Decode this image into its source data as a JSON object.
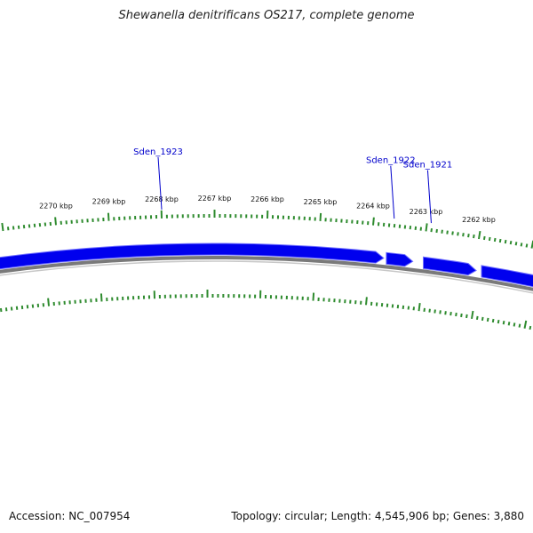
{
  "title": "Shewanella denitrificans OS217, complete genome",
  "accession_text": "Accession: NC_007954",
  "summary_text": "Topology: circular; Length: 4,545,906 bp; Genes: 3,880",
  "colors": {
    "gene": "#0000ee",
    "gene_label": "#0000cc",
    "tick": "#2e8b2e",
    "backbone": "#7a7a7a"
  },
  "ticks_kbp": [
    {
      "kbp": 2270,
      "label": "2270 kbp"
    },
    {
      "kbp": 2269,
      "label": "2269 kbp"
    },
    {
      "kbp": 2268,
      "label": "2268 kbp"
    },
    {
      "kbp": 2267,
      "label": "2267 kbp"
    },
    {
      "kbp": 2266,
      "label": "2266 kbp"
    },
    {
      "kbp": 2265,
      "label": "2265 kbp"
    },
    {
      "kbp": 2264,
      "label": "2264 kbp"
    },
    {
      "kbp": 2263,
      "label": "2263 kbp"
    },
    {
      "kbp": 2262,
      "label": "2262 kbp"
    }
  ],
  "genes": [
    {
      "name": "Sden_1923",
      "start_kbp": 2263.8,
      "end_kbp": 2271.2,
      "strand": "forward",
      "labeled": true,
      "label_kbp": 2268.0
    },
    {
      "name": "Sden_1922",
      "start_kbp": 2263.25,
      "end_kbp": 2263.75,
      "strand": "forward",
      "labeled": true,
      "label_kbp": 2263.6
    },
    {
      "name": "Sden_1921",
      "start_kbp": 2262.05,
      "end_kbp": 2263.05,
      "strand": "forward",
      "labeled": true,
      "label_kbp": 2262.9
    },
    {
      "name": "",
      "start_kbp": 2260.8,
      "end_kbp": 2261.95,
      "strand": "forward",
      "labeled": false,
      "label_kbp": 2261.5
    }
  ]
}
